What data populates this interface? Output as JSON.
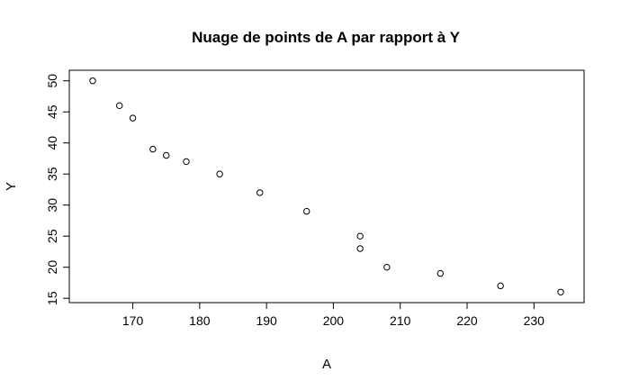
{
  "chart_data": {
    "type": "scatter",
    "title": "Nuage de points de A par rapport à Y",
    "xlabel": "A",
    "ylabel": "Y",
    "xlim": [
      160.5,
      237.5
    ],
    "ylim": [
      14.3,
      51.7
    ],
    "xticks": [
      170,
      180,
      190,
      200,
      210,
      220,
      230
    ],
    "yticks": [
      15,
      20,
      25,
      30,
      35,
      40,
      45,
      50
    ],
    "grid": false,
    "points": [
      {
        "x": 164,
        "y": 50
      },
      {
        "x": 168,
        "y": 46
      },
      {
        "x": 170,
        "y": 44
      },
      {
        "x": 173,
        "y": 39
      },
      {
        "x": 175,
        "y": 38
      },
      {
        "x": 178,
        "y": 37
      },
      {
        "x": 183,
        "y": 35
      },
      {
        "x": 189,
        "y": 32
      },
      {
        "x": 196,
        "y": 29
      },
      {
        "x": 204,
        "y": 25
      },
      {
        "x": 204,
        "y": 23
      },
      {
        "x": 208,
        "y": 20
      },
      {
        "x": 216,
        "y": 19
      },
      {
        "x": 225,
        "y": 17
      },
      {
        "x": 234,
        "y": 16
      }
    ]
  }
}
